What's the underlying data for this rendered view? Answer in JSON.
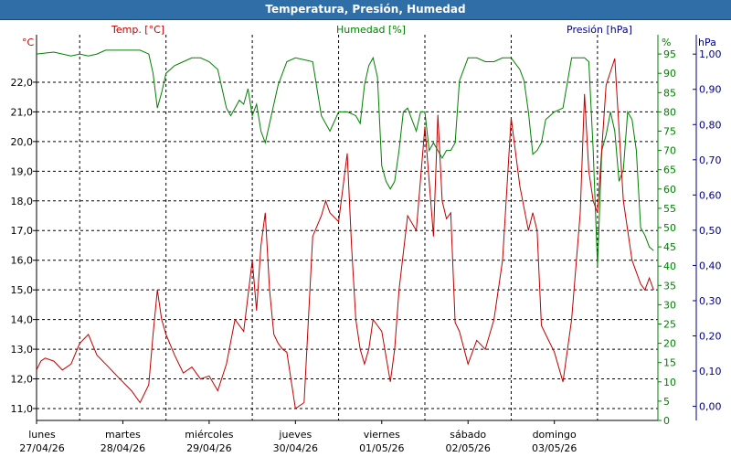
{
  "window": {
    "title": "Temperatura, Presión, Humedad"
  },
  "chart_data": {
    "type": "line",
    "title": "Temperatura, Presión, Humedad",
    "grid": true,
    "x_categories": [
      {
        "day": "lunes",
        "date": "27/04/26"
      },
      {
        "day": "martes",
        "date": "28/04/26"
      },
      {
        "day": "miércoles",
        "date": "29/04/26"
      },
      {
        "day": "jueves",
        "date": "30/04/26"
      },
      {
        "day": "viernes",
        "date": "01/05/26"
      },
      {
        "day": "sábado",
        "date": "02/05/26"
      },
      {
        "day": "domingo",
        "date": "03/05/26"
      }
    ],
    "x_range_days": [
      0,
      7.2
    ],
    "axes": {
      "temp": {
        "label": "Temp. [°C]",
        "unit_label": "°C",
        "color": "#c00000",
        "min": 10.6,
        "max": 23.6,
        "ticks": [
          "11,0",
          "12,0",
          "13,0",
          "14,0",
          "15,0",
          "16,0",
          "17,0",
          "18,0",
          "19,0",
          "20,0",
          "21,0",
          "22,0"
        ],
        "tick_values": [
          11,
          12,
          13,
          14,
          15,
          16,
          17,
          18,
          19,
          20,
          21,
          22
        ]
      },
      "hum": {
        "label": "Humedad [%]",
        "unit_label": "%",
        "color": "#008000",
        "min": 0,
        "max": 100,
        "ticks": [
          "0",
          "5",
          "10",
          "15",
          "20",
          "25",
          "30",
          "35",
          "40",
          "45",
          "50",
          "55",
          "60",
          "65",
          "70",
          "75",
          "80",
          "85",
          "90",
          "95"
        ],
        "tick_values": [
          0,
          5,
          10,
          15,
          20,
          25,
          30,
          35,
          40,
          45,
          50,
          55,
          60,
          65,
          70,
          75,
          80,
          85,
          90,
          95
        ]
      },
      "pres": {
        "label": "Presión [hPa]",
        "unit_label": "hPa",
        "color": "#000080",
        "min": -0.04,
        "max": 1.055,
        "ticks": [
          "0,00",
          "0,10",
          "0,20",
          "0,30",
          "0,40",
          "0,50",
          "0,60",
          "0,70",
          "0,80",
          "0,90",
          "1,00"
        ],
        "tick_values": [
          0,
          0.1,
          0.2,
          0.3,
          0.4,
          0.5,
          0.6,
          0.7,
          0.8,
          0.9,
          1.0
        ]
      }
    },
    "series": [
      {
        "name": "Temp. [°C]",
        "axis": "temp",
        "color": "#c00000",
        "x": [
          0,
          0.05,
          0.1,
          0.2,
          0.3,
          0.4,
          0.5,
          0.6,
          0.7,
          0.8,
          0.9,
          1.0,
          1.1,
          1.2,
          1.3,
          1.35,
          1.4,
          1.45,
          1.5,
          1.6,
          1.7,
          1.8,
          1.9,
          2.0,
          2.1,
          2.2,
          2.3,
          2.4,
          2.5,
          2.55,
          2.6,
          2.65,
          2.7,
          2.75,
          2.8,
          2.85,
          2.9,
          3.0,
          3.1,
          3.2,
          3.3,
          3.35,
          3.4,
          3.5,
          3.6,
          3.65,
          3.7,
          3.75,
          3.8,
          3.85,
          3.9,
          4.0,
          4.1,
          4.15,
          4.2,
          4.3,
          4.4,
          4.5,
          4.6,
          4.65,
          4.7,
          4.75,
          4.8,
          4.85,
          4.9,
          5.0,
          5.1,
          5.2,
          5.3,
          5.4,
          5.5,
          5.6,
          5.7,
          5.75,
          5.8,
          5.85,
          5.9,
          6.0,
          6.1,
          6.2,
          6.3,
          6.35,
          6.4,
          6.45,
          6.5,
          6.6,
          6.7,
          6.8,
          6.9,
          7.0,
          7.05,
          7.1,
          7.15
        ],
        "values": [
          12.3,
          12.6,
          12.7,
          12.6,
          12.3,
          12.5,
          13.2,
          13.5,
          12.8,
          12.5,
          12.2,
          11.9,
          11.6,
          11.2,
          11.8,
          13.5,
          15.0,
          14.0,
          13.5,
          12.8,
          12.2,
          12.4,
          12.0,
          12.1,
          11.6,
          12.5,
          14.0,
          13.6,
          16.0,
          14.3,
          16.5,
          17.6,
          15.0,
          13.5,
          13.2,
          13.0,
          12.9,
          11.0,
          11.2,
          16.8,
          17.5,
          18.0,
          17.6,
          17.3,
          19.6,
          16.5,
          14.0,
          13.0,
          12.5,
          13.0,
          14.0,
          13.6,
          11.9,
          13.0,
          15.0,
          17.5,
          17.0,
          20.5,
          16.8,
          20.9,
          18.0,
          17.4,
          17.6,
          13.9,
          13.6,
          12.5,
          13.3,
          13.0,
          14.0,
          16.0,
          20.8,
          18.5,
          17.0,
          17.6,
          17.0,
          13.8,
          13.5,
          12.9,
          11.9,
          14.0,
          17.6,
          21.6,
          19.0,
          18.0,
          17.6,
          21.9,
          22.8,
          18.0,
          16.0,
          15.2,
          15.0,
          15.4,
          15.0
        ]
      },
      {
        "name": "Humedad [%]",
        "axis": "hum",
        "color": "#008000",
        "x": [
          0,
          0.2,
          0.4,
          0.5,
          0.6,
          0.7,
          0.8,
          1.0,
          1.2,
          1.3,
          1.35,
          1.4,
          1.45,
          1.5,
          1.6,
          1.7,
          1.8,
          1.9,
          2.0,
          2.1,
          2.2,
          2.25,
          2.3,
          2.35,
          2.4,
          2.45,
          2.5,
          2.55,
          2.6,
          2.65,
          2.7,
          2.8,
          2.9,
          3.0,
          3.1,
          3.2,
          3.3,
          3.35,
          3.4,
          3.5,
          3.6,
          3.7,
          3.75,
          3.8,
          3.85,
          3.9,
          3.95,
          4.0,
          4.05,
          4.1,
          4.15,
          4.2,
          4.25,
          4.3,
          4.35,
          4.4,
          4.45,
          4.5,
          4.55,
          4.6,
          4.65,
          4.7,
          4.75,
          4.8,
          4.85,
          4.9,
          5.0,
          5.1,
          5.2,
          5.3,
          5.4,
          5.5,
          5.6,
          5.65,
          5.7,
          5.75,
          5.8,
          5.85,
          5.9,
          6.0,
          6.1,
          6.2,
          6.3,
          6.35,
          6.4,
          6.45,
          6.5,
          6.55,
          6.6,
          6.65,
          6.7,
          6.75,
          6.8,
          6.85,
          6.9,
          6.95,
          7.0,
          7.05,
          7.1,
          7.15
        ],
        "values": [
          95,
          95.5,
          94.5,
          95,
          94.5,
          95,
          96,
          96,
          96,
          95,
          90,
          81,
          85,
          90,
          92,
          93,
          94,
          94,
          93,
          91,
          81,
          79,
          81,
          83,
          82,
          86,
          79,
          82,
          75,
          72,
          77,
          87,
          93,
          94,
          93.5,
          93,
          79,
          77,
          75,
          80,
          80,
          79,
          77,
          87,
          92,
          94,
          89,
          66,
          62,
          60,
          62,
          70,
          80,
          81,
          78,
          75,
          80,
          80,
          70,
          72,
          70,
          68,
          70,
          70,
          72,
          88,
          94,
          94,
          93,
          93,
          94,
          94,
          91,
          88,
          80,
          69,
          70,
          72,
          78,
          80,
          81,
          94,
          94,
          94,
          93,
          70,
          40,
          70,
          74,
          80,
          75,
          62,
          65,
          80,
          78,
          70,
          50,
          48,
          45,
          44
        ]
      }
    ]
  }
}
